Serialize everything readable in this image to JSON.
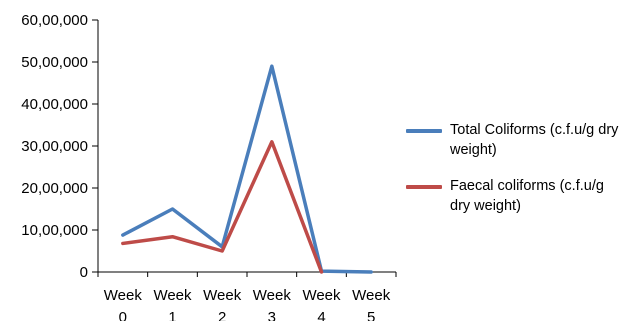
{
  "chart_data": {
    "type": "line",
    "categories": [
      [
        "Week",
        "0"
      ],
      [
        "Week",
        "1"
      ],
      [
        "Week",
        "2"
      ],
      [
        "Week",
        "3"
      ],
      [
        "Week",
        "4"
      ],
      [
        "Week",
        "5"
      ]
    ],
    "ytick_labels": [
      "0",
      "10,00,000",
      "20,00,000",
      "30,00,000",
      "40,00,000",
      "50,00,000",
      "60,00,000"
    ],
    "yticks": [
      0,
      1000000,
      2000000,
      3000000,
      4000000,
      5000000,
      6000000
    ],
    "ylim": [
      0,
      6000000
    ],
    "grid": false,
    "legend_position": "right",
    "series": [
      {
        "name": "Total Coliforms (c.f.u/g dry weight)",
        "color": "#4a7ebb",
        "values": [
          880000,
          1500000,
          600000,
          4900000,
          20000,
          0
        ]
      },
      {
        "name": "Faecal coliforms (c.f.u/g dry weight)",
        "color": "#be4b48",
        "values": [
          680000,
          840000,
          500000,
          3100000,
          0,
          null
        ]
      }
    ],
    "title": "",
    "xlabel": "",
    "ylabel": ""
  }
}
